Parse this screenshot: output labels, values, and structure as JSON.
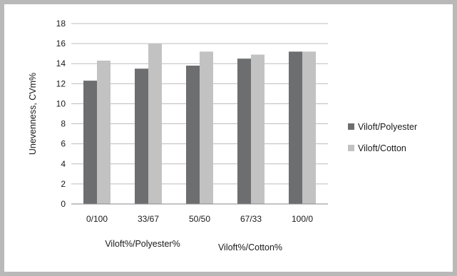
{
  "chart_data": {
    "type": "bar",
    "categories": [
      "0/100",
      "33/67",
      "50/50",
      "67/33",
      "100/0"
    ],
    "series": [
      {
        "name": "Viloft/Polyester",
        "color": "#6d6e70",
        "values": [
          12.3,
          13.5,
          13.8,
          14.5,
          15.2
        ]
      },
      {
        "name": "Viloft/Cotton",
        "color": "#c2c2c2",
        "values": [
          14.3,
          16.0,
          15.2,
          14.9,
          15.2
        ]
      }
    ],
    "title": "",
    "ylabel": "Unevenness, CVm%",
    "xlabels": [
      "Viloft%/Polyester%",
      "Viloft%/Cotton%"
    ],
    "ylim": [
      0,
      18
    ],
    "yticks": [
      0,
      2,
      4,
      6,
      8,
      10,
      12,
      14,
      16,
      18
    ],
    "grid": true,
    "legend_position": "right"
  }
}
